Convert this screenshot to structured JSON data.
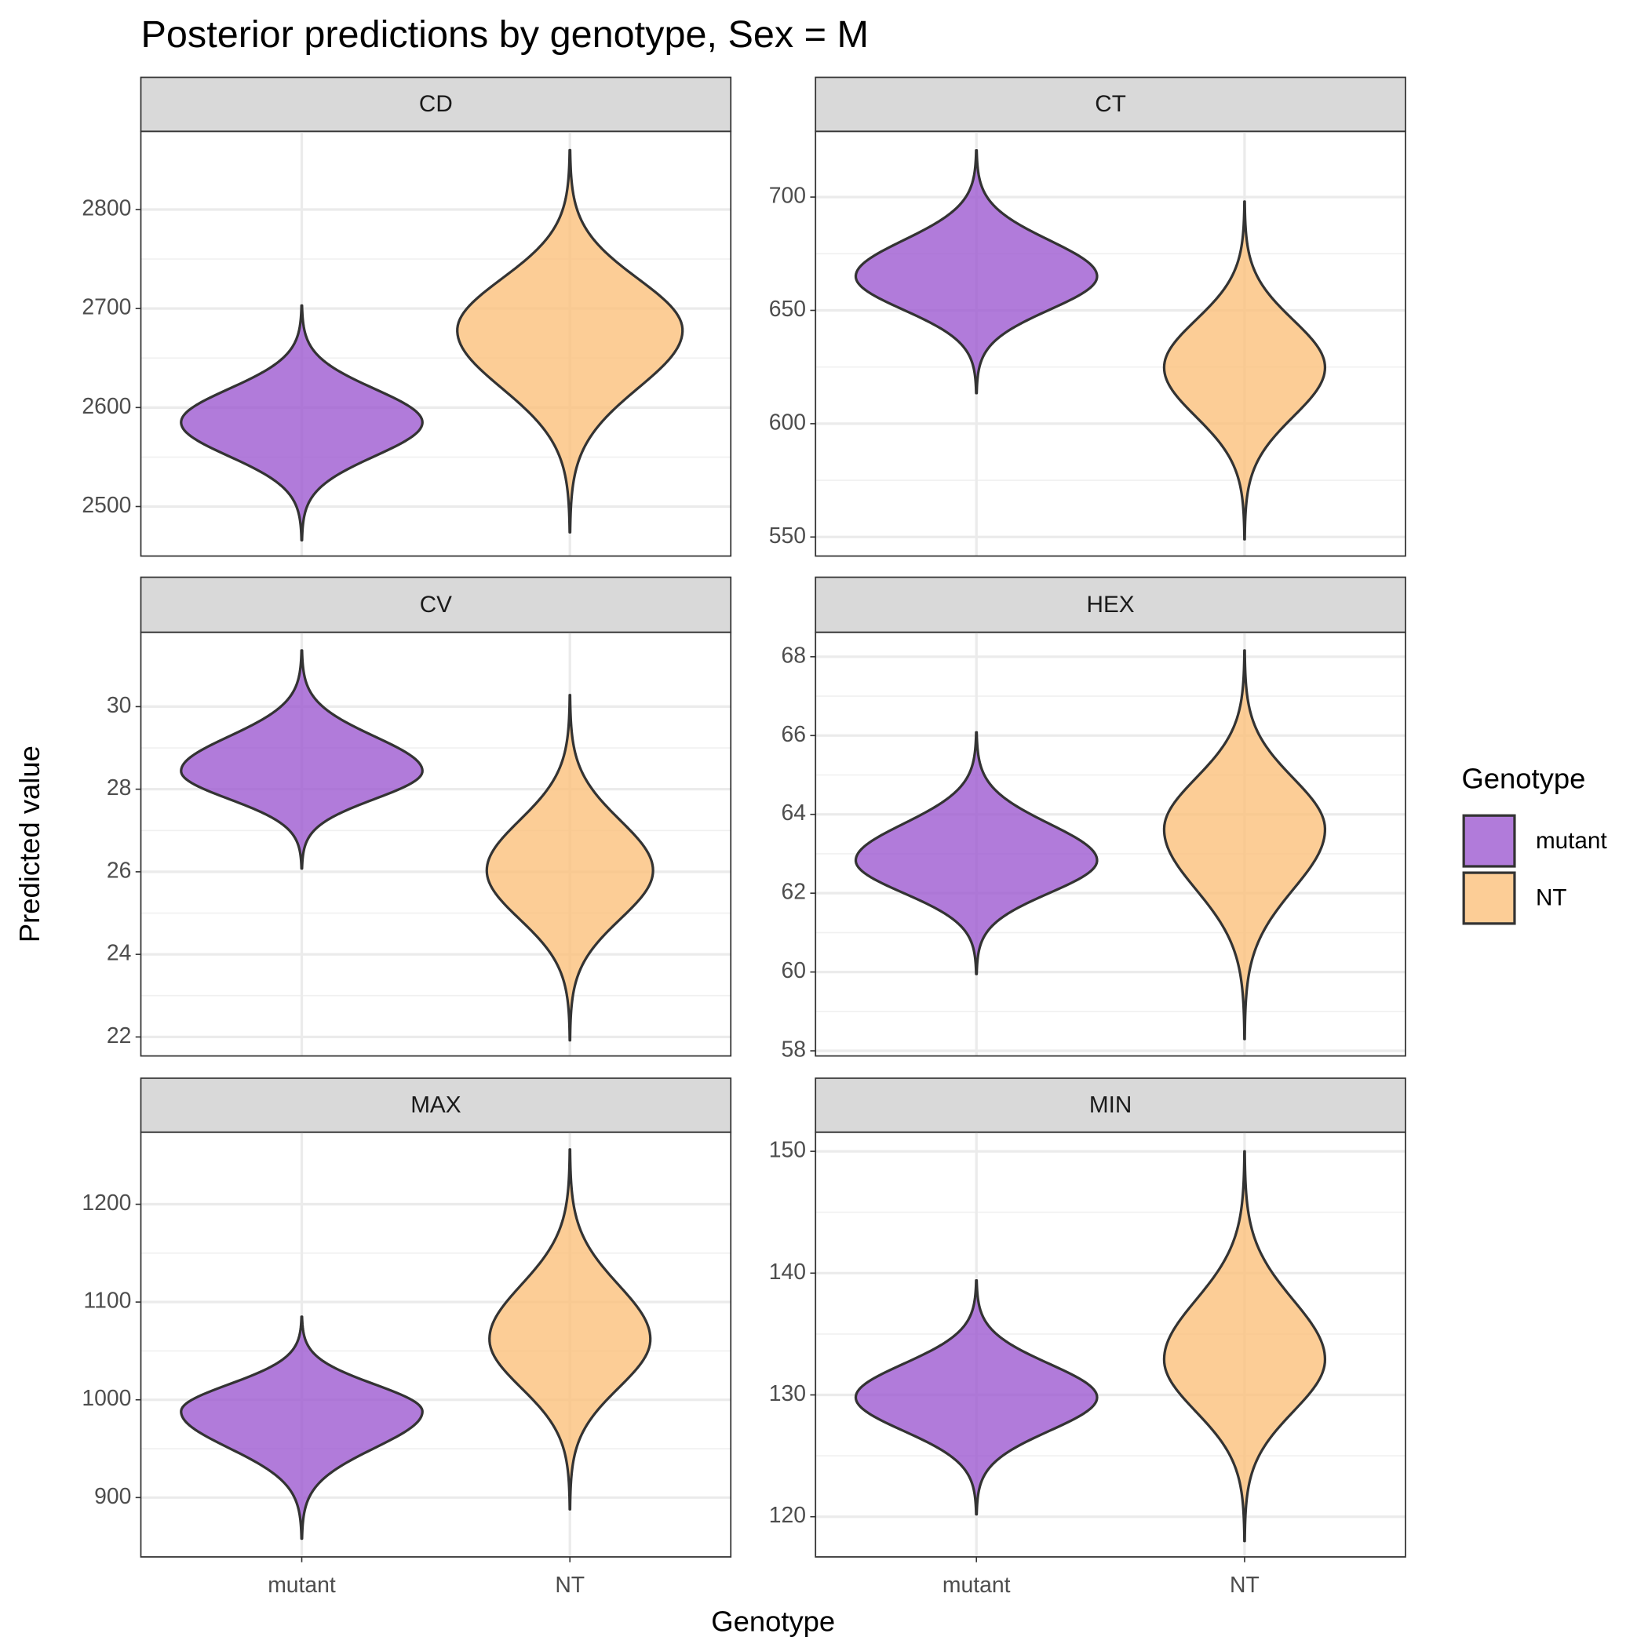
{
  "chart_data": {
    "type": "violin",
    "title": "Posterior predictions by genotype, Sex = M",
    "x_label": "Genotype",
    "y_label": "Predicted value",
    "legend_title": "Genotype",
    "categories": [
      "mutant",
      "NT"
    ],
    "series": [
      {
        "name": "mutant",
        "color": "#9b56cf"
      },
      {
        "name": "NT",
        "color": "#fbbf78"
      }
    ],
    "alpha": 0.78,
    "grid": true,
    "facets": [
      {
        "title": "CD",
        "ylim": [
          2450,
          2879
        ],
        "yticks": [
          2500,
          2600,
          2700,
          2800
        ],
        "min": [
          2466,
          2474
        ],
        "mode": [
          2585,
          2678
        ],
        "max": [
          2703,
          2860
        ],
        "width": [
          0.45,
          0.42
        ]
      },
      {
        "title": "CT",
        "ylim": [
          541.6,
          729
        ],
        "yticks": [
          550,
          600,
          650,
          700
        ],
        "min": [
          613.5,
          549
        ],
        "mode": [
          665,
          624.8
        ],
        "max": [
          720.6,
          698
        ],
        "width": [
          0.45,
          0.3
        ]
      },
      {
        "title": "CV",
        "ylim": [
          21.54,
          31.8
        ],
        "yticks": [
          22,
          24,
          26,
          28,
          30
        ],
        "min": [
          26.08,
          21.92
        ],
        "mode": [
          28.44,
          26.03
        ],
        "max": [
          31.36,
          30.28
        ],
        "width": [
          0.45,
          0.31
        ]
      },
      {
        "title": "HEX",
        "ylim": [
          57.87,
          68.62
        ],
        "yticks": [
          58,
          60,
          62,
          64,
          66,
          68
        ],
        "min": [
          59.95,
          58.3
        ],
        "mode": [
          62.83,
          63.62
        ],
        "max": [
          66.08,
          68.16
        ],
        "width": [
          0.45,
          0.3
        ]
      },
      {
        "title": "MAX",
        "ylim": [
          839.3,
          1273.7
        ],
        "yticks": [
          900,
          1000,
          1100,
          1200
        ],
        "min": [
          858,
          888
        ],
        "mode": [
          988,
          1062
        ],
        "max": [
          1085,
          1256
        ],
        "width": [
          0.45,
          0.3
        ]
      },
      {
        "title": "MIN",
        "ylim": [
          116.7,
          151.57
        ],
        "yticks": [
          120,
          130,
          140,
          150
        ],
        "min": [
          120.2,
          118
        ],
        "mode": [
          129.8,
          132.9
        ],
        "max": [
          139.4,
          150
        ],
        "width": [
          0.45,
          0.3
        ]
      }
    ]
  }
}
